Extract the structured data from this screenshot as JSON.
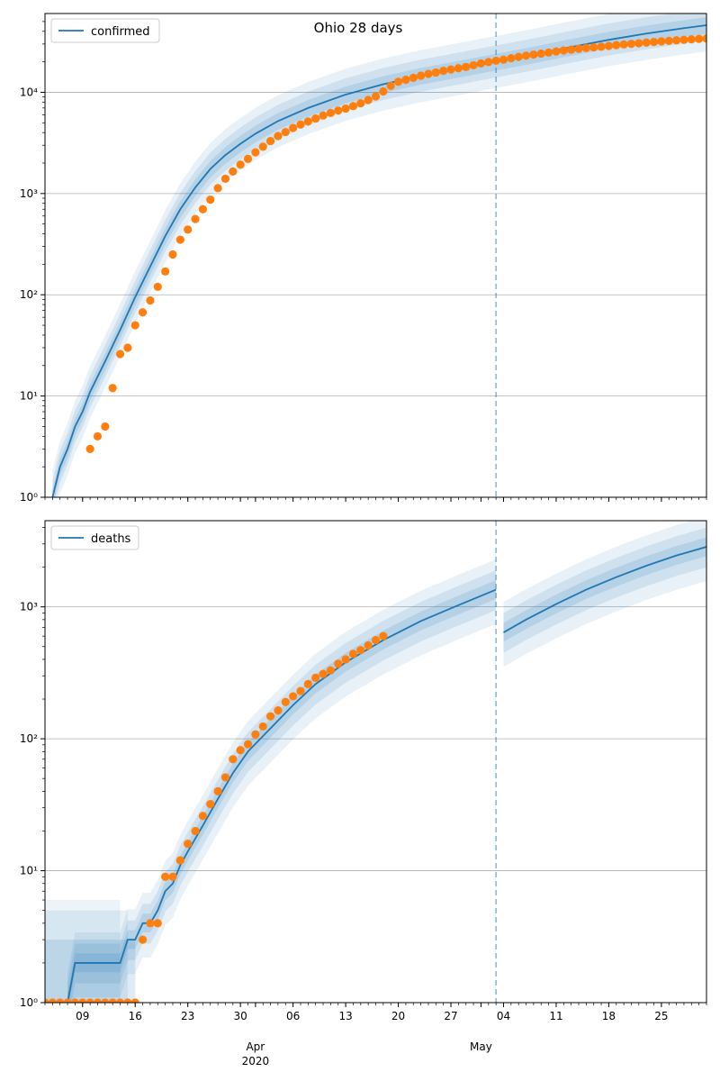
{
  "figure": {
    "title": "Ohio 28 days"
  },
  "colors": {
    "model": "#1f77b4",
    "observed": "#ff7f0e",
    "grid": "#b0b0b0",
    "forecast_line": "#1f77b4"
  },
  "x_axis": {
    "range": [
      "2020-03-04",
      "2020-05-31"
    ],
    "day_ticks": [
      {
        "date": "2020-03-09",
        "label": "09"
      },
      {
        "date": "2020-03-16",
        "label": "16"
      },
      {
        "date": "2020-03-23",
        "label": "23"
      },
      {
        "date": "2020-03-30",
        "label": "30"
      },
      {
        "date": "2020-04-06",
        "label": "06"
      },
      {
        "date": "2020-04-13",
        "label": "13"
      },
      {
        "date": "2020-04-20",
        "label": "20"
      },
      {
        "date": "2020-04-27",
        "label": "27"
      },
      {
        "date": "2020-05-04",
        "label": "04"
      },
      {
        "date": "2020-05-11",
        "label": "11"
      },
      {
        "date": "2020-05-18",
        "label": "18"
      },
      {
        "date": "2020-05-25",
        "label": "25"
      }
    ],
    "month_labels": [
      {
        "date": "2020-04-01",
        "label": "Apr",
        "sub": "2020"
      },
      {
        "date": "2020-05-01",
        "label": "May",
        "sub": ""
      }
    ],
    "forecast_start": "2020-05-03"
  },
  "chart_data": [
    {
      "type": "line",
      "y_scale": "log",
      "ylim": [
        1,
        60000
      ],
      "y_ticks": [
        {
          "value": 1,
          "label": "10⁰"
        },
        {
          "value": 10,
          "label": "10¹"
        },
        {
          "value": 100,
          "label": "10²"
        },
        {
          "value": 1000,
          "label": "10³"
        },
        {
          "value": 10000,
          "label": "10⁴"
        }
      ],
      "grid": "horizontal",
      "legend": {
        "position": "top-left",
        "entries": [
          "confirmed"
        ]
      },
      "model": {
        "name": "confirmed",
        "points": [
          [
            "2020-03-05",
            1
          ],
          [
            "2020-03-06",
            2
          ],
          [
            "2020-03-07",
            3
          ],
          [
            "2020-03-08",
            5
          ],
          [
            "2020-03-09",
            7
          ],
          [
            "2020-03-10",
            11
          ],
          [
            "2020-03-12",
            22
          ],
          [
            "2020-03-14",
            45
          ],
          [
            "2020-03-16",
            95
          ],
          [
            "2020-03-18",
            190
          ],
          [
            "2020-03-20",
            380
          ],
          [
            "2020-03-22",
            700
          ],
          [
            "2020-03-24",
            1150
          ],
          [
            "2020-03-26",
            1750
          ],
          [
            "2020-03-28",
            2400
          ],
          [
            "2020-03-30",
            3100
          ],
          [
            "2020-04-01",
            3900
          ],
          [
            "2020-04-04",
            5200
          ],
          [
            "2020-04-08",
            7000
          ],
          [
            "2020-04-13",
            9500
          ],
          [
            "2020-04-18",
            12000
          ],
          [
            "2020-04-23",
            14500
          ],
          [
            "2020-04-28",
            17000
          ],
          [
            "2020-05-03",
            20000
          ],
          [
            "2020-05-08",
            23500
          ],
          [
            "2020-05-13",
            28000
          ],
          [
            "2020-05-18",
            33000
          ],
          [
            "2020-05-23",
            38000
          ],
          [
            "2020-05-28",
            43000
          ],
          [
            "2020-05-31",
            46000
          ]
        ],
        "bands": [
          {
            "low": 0.55,
            "high": 1.8,
            "opacity": 0.1
          },
          {
            "low": 0.7,
            "high": 1.45,
            "opacity": 0.12
          },
          {
            "low": 0.82,
            "high": 1.2,
            "opacity": 0.15
          }
        ]
      },
      "observed": {
        "name": "confirmed observed",
        "points": [
          [
            "2020-03-10",
            3
          ],
          [
            "2020-03-11",
            4
          ],
          [
            "2020-03-12",
            5
          ],
          [
            "2020-03-13",
            12
          ],
          [
            "2020-03-14",
            26
          ],
          [
            "2020-03-15",
            30
          ],
          [
            "2020-03-16",
            50
          ],
          [
            "2020-03-17",
            67
          ],
          [
            "2020-03-18",
            88
          ],
          [
            "2020-03-19",
            120
          ],
          [
            "2020-03-20",
            170
          ],
          [
            "2020-03-21",
            250
          ],
          [
            "2020-03-22",
            350
          ],
          [
            "2020-03-23",
            440
          ],
          [
            "2020-03-24",
            560
          ],
          [
            "2020-03-25",
            700
          ],
          [
            "2020-03-26",
            870
          ],
          [
            "2020-03-27",
            1130
          ],
          [
            "2020-03-28",
            1400
          ],
          [
            "2020-03-29",
            1650
          ],
          [
            "2020-03-30",
            1930
          ],
          [
            "2020-03-31",
            2200
          ],
          [
            "2020-04-01",
            2550
          ],
          [
            "2020-04-02",
            2900
          ],
          [
            "2020-04-03",
            3300
          ],
          [
            "2020-04-04",
            3700
          ],
          [
            "2020-04-05",
            4050
          ],
          [
            "2020-04-06",
            4450
          ],
          [
            "2020-04-07",
            4800
          ],
          [
            "2020-04-08",
            5150
          ],
          [
            "2020-04-09",
            5500
          ],
          [
            "2020-04-10",
            5900
          ],
          [
            "2020-04-11",
            6250
          ],
          [
            "2020-04-12",
            6600
          ],
          [
            "2020-04-13",
            6900
          ],
          [
            "2020-04-14",
            7300
          ],
          [
            "2020-04-15",
            7800
          ],
          [
            "2020-04-16",
            8400
          ],
          [
            "2020-04-17",
            9100
          ],
          [
            "2020-04-18",
            10200
          ],
          [
            "2020-04-19",
            11600
          ],
          [
            "2020-04-20",
            12700
          ],
          [
            "2020-04-21",
            13300
          ],
          [
            "2020-04-22",
            13900
          ],
          [
            "2020-04-23",
            14600
          ],
          [
            "2020-04-24",
            15200
          ],
          [
            "2020-04-25",
            15700
          ],
          [
            "2020-04-26",
            16300
          ],
          [
            "2020-04-27",
            16800
          ],
          [
            "2020-04-28",
            17300
          ],
          [
            "2020-04-29",
            17800
          ],
          [
            "2020-04-30",
            18500
          ],
          [
            "2020-05-01",
            19300
          ],
          [
            "2020-05-02",
            19900
          ],
          [
            "2020-05-03",
            20500
          ],
          [
            "2020-05-04",
            21000
          ],
          [
            "2020-05-05",
            21700
          ],
          [
            "2020-05-06",
            22400
          ],
          [
            "2020-05-07",
            23000
          ],
          [
            "2020-05-08",
            23600
          ],
          [
            "2020-05-09",
            24100
          ],
          [
            "2020-05-10",
            24700
          ],
          [
            "2020-05-11",
            25300
          ],
          [
            "2020-05-12",
            25900
          ],
          [
            "2020-05-13",
            26400
          ],
          [
            "2020-05-14",
            26900
          ],
          [
            "2020-05-15",
            27400
          ],
          [
            "2020-05-16",
            27800
          ],
          [
            "2020-05-17",
            28200
          ],
          [
            "2020-05-18",
            28700
          ],
          [
            "2020-05-19",
            29200
          ],
          [
            "2020-05-20",
            29700
          ],
          [
            "2020-05-21",
            30100
          ],
          [
            "2020-05-22",
            30500
          ],
          [
            "2020-05-23",
            31000
          ],
          [
            "2020-05-24",
            31400
          ],
          [
            "2020-05-25",
            31800
          ],
          [
            "2020-05-26",
            32200
          ],
          [
            "2020-05-27",
            32600
          ],
          [
            "2020-05-28",
            33000
          ],
          [
            "2020-05-29",
            33400
          ],
          [
            "2020-05-30",
            33700
          ],
          [
            "2020-05-31",
            34000
          ]
        ]
      }
    },
    {
      "type": "line",
      "y_scale": "log",
      "ylim": [
        1,
        4500
      ],
      "y_ticks": [
        {
          "value": 1,
          "label": "10⁰"
        },
        {
          "value": 10,
          "label": "10¹"
        },
        {
          "value": 100,
          "label": "10²"
        },
        {
          "value": 1000,
          "label": "10³"
        }
      ],
      "grid": "horizontal",
      "legend": {
        "position": "top-left",
        "entries": [
          "deaths"
        ]
      },
      "model": {
        "name": "deaths",
        "segments": [
          [
            [
              "2020-03-07",
              1
            ],
            [
              "2020-03-08",
              2
            ],
            [
              "2020-03-14",
              2
            ],
            [
              "2020-03-15",
              3
            ],
            [
              "2020-03-16",
              3
            ],
            [
              "2020-03-17",
              4
            ],
            [
              "2020-03-18",
              4
            ],
            [
              "2020-03-19",
              5
            ],
            [
              "2020-03-20",
              7
            ],
            [
              "2020-03-21",
              8
            ],
            [
              "2020-03-22",
              11
            ],
            [
              "2020-03-23",
              14
            ],
            [
              "2020-03-25",
              22
            ],
            [
              "2020-03-27",
              35
            ],
            [
              "2020-03-29",
              55
            ],
            [
              "2020-03-31",
              80
            ],
            [
              "2020-04-03",
              120
            ],
            [
              "2020-04-06",
              180
            ],
            [
              "2020-04-09",
              260
            ],
            [
              "2020-04-13",
              380
            ],
            [
              "2020-04-18",
              560
            ],
            [
              "2020-04-23",
              780
            ],
            [
              "2020-04-28",
              1030
            ],
            [
              "2020-05-03",
              1350
            ]
          ],
          [
            [
              "2020-05-04",
              640
            ],
            [
              "2020-05-07",
              800
            ],
            [
              "2020-05-11",
              1050
            ],
            [
              "2020-05-15",
              1350
            ],
            [
              "2020-05-19",
              1680
            ],
            [
              "2020-05-23",
              2050
            ],
            [
              "2020-05-27",
              2450
            ],
            [
              "2020-05-31",
              2850
            ]
          ]
        ],
        "early_bands": [
          {
            "low": 1,
            "high": 3,
            "until": "2020-03-16",
            "opacity": 0.15
          },
          {
            "low": 1,
            "high": 5,
            "until": "2020-03-15",
            "opacity": 0.1
          },
          {
            "low": 1,
            "high": 6,
            "until": "2020-03-14",
            "opacity": 0.08
          }
        ],
        "bands": [
          {
            "low": 0.55,
            "high": 1.7,
            "opacity": 0.1
          },
          {
            "low": 0.7,
            "high": 1.4,
            "opacity": 0.12
          },
          {
            "low": 0.85,
            "high": 1.18,
            "opacity": 0.15
          }
        ]
      },
      "observed": {
        "name": "deaths observed",
        "points": [
          [
            "2020-03-04",
            1
          ],
          [
            "2020-03-05",
            1
          ],
          [
            "2020-03-06",
            1
          ],
          [
            "2020-03-07",
            1
          ],
          [
            "2020-03-08",
            1
          ],
          [
            "2020-03-09",
            1
          ],
          [
            "2020-03-10",
            1
          ],
          [
            "2020-03-11",
            1
          ],
          [
            "2020-03-12",
            1
          ],
          [
            "2020-03-13",
            1
          ],
          [
            "2020-03-14",
            1
          ],
          [
            "2020-03-15",
            1
          ],
          [
            "2020-03-16",
            1
          ],
          [
            "2020-03-17",
            3
          ],
          [
            "2020-03-18",
            4
          ],
          [
            "2020-03-19",
            4
          ],
          [
            "2020-03-20",
            9
          ],
          [
            "2020-03-21",
            9
          ],
          [
            "2020-03-22",
            12
          ],
          [
            "2020-03-23",
            16
          ],
          [
            "2020-03-24",
            20
          ],
          [
            "2020-03-25",
            26
          ],
          [
            "2020-03-26",
            32
          ],
          [
            "2020-03-27",
            40
          ],
          [
            "2020-03-28",
            51
          ],
          [
            "2020-03-29",
            70
          ],
          [
            "2020-03-30",
            82
          ],
          [
            "2020-03-31",
            91
          ],
          [
            "2020-04-01",
            108
          ],
          [
            "2020-04-02",
            124
          ],
          [
            "2020-04-03",
            148
          ],
          [
            "2020-04-04",
            164
          ],
          [
            "2020-04-05",
            190
          ],
          [
            "2020-04-06",
            210
          ],
          [
            "2020-04-07",
            230
          ],
          [
            "2020-04-08",
            260
          ],
          [
            "2020-04-09",
            290
          ],
          [
            "2020-04-10",
            310
          ],
          [
            "2020-04-11",
            330
          ],
          [
            "2020-04-12",
            370
          ],
          [
            "2020-04-13",
            400
          ],
          [
            "2020-04-14",
            440
          ],
          [
            "2020-04-15",
            470
          ],
          [
            "2020-04-16",
            510
          ],
          [
            "2020-04-17",
            560
          ],
          [
            "2020-04-18",
            600
          ]
        ]
      }
    }
  ]
}
